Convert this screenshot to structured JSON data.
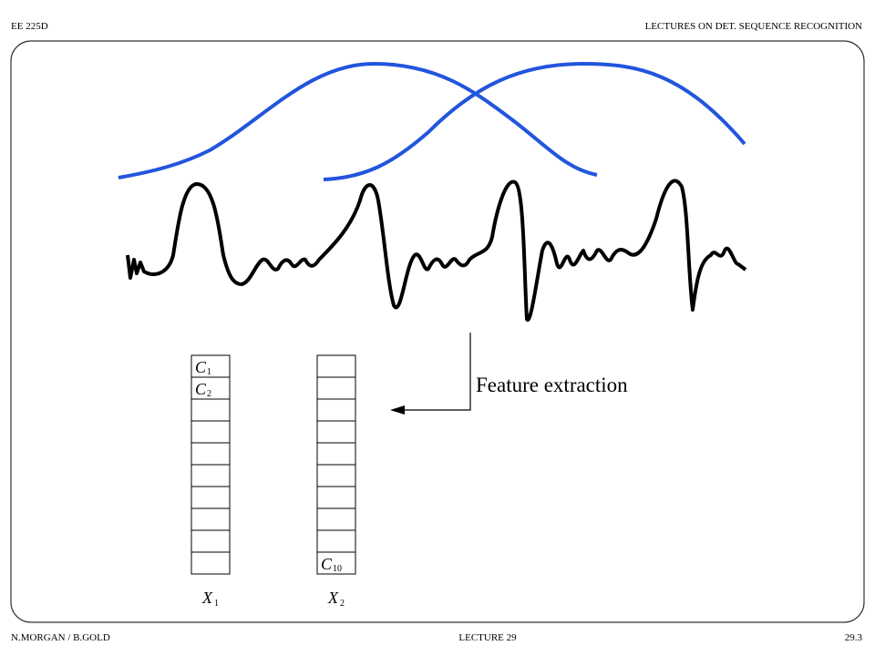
{
  "header": {
    "left": "EE 225D",
    "right": "LECTURES ON DET. SEQUENCE RECOGNITION"
  },
  "footer": {
    "left": "N.MORGAN / B.GOLD",
    "center": "LECTURE  29",
    "right": "29.3"
  },
  "diagram": {
    "annotation": "Feature extraction",
    "vectors": [
      {
        "label": {
          "base": "X",
          "sub": "1"
        },
        "cells": [
          {
            "base": "C",
            "sub": "1"
          },
          {
            "base": "C",
            "sub": "2"
          },
          null,
          null,
          null,
          null,
          null,
          null,
          null,
          null
        ]
      },
      {
        "label": {
          "base": "X",
          "sub": "2"
        },
        "cells": [
          null,
          null,
          null,
          null,
          null,
          null,
          null,
          null,
          null,
          {
            "base": "C",
            "sub": "10"
          }
        ]
      }
    ]
  }
}
